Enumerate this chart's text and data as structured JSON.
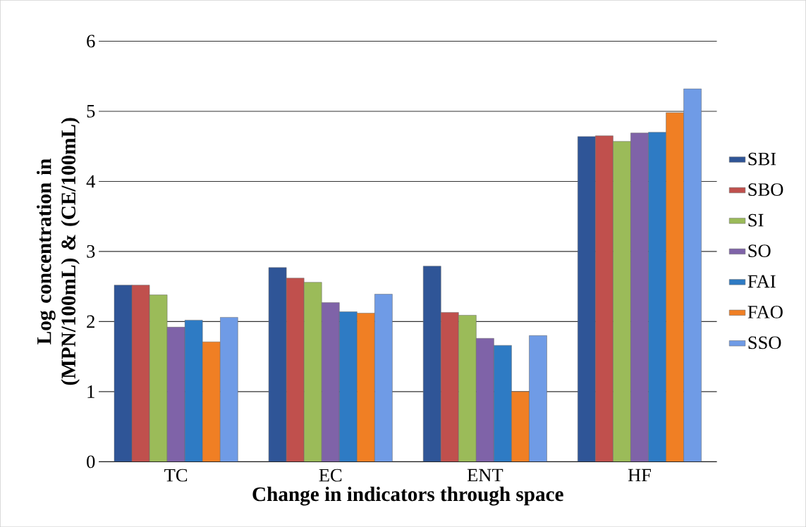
{
  "chart_data": {
    "type": "bar",
    "xlabel": "Change in indicators through space",
    "ylabel": "Log concentration in (MPN/100mL) & (CE/100mL)",
    "categories": [
      "TC",
      "EC",
      "ENT",
      "HF"
    ],
    "series": [
      {
        "name": "SBI",
        "color": "#2f5597",
        "values": [
          2.52,
          2.77,
          2.79,
          4.64
        ]
      },
      {
        "name": "SBO",
        "color": "#c0504d",
        "values": [
          2.52,
          2.62,
          2.13,
          4.65
        ]
      },
      {
        "name": "SI",
        "color": "#9bbb59",
        "values": [
          2.38,
          2.56,
          2.09,
          4.57
        ]
      },
      {
        "name": "SO",
        "color": "#7f63a8",
        "values": [
          1.92,
          2.27,
          1.76,
          4.69
        ]
      },
      {
        "name": "FAI",
        "color": "#2e7bc4",
        "values": [
          2.02,
          2.14,
          1.66,
          4.7
        ]
      },
      {
        "name": "FAO",
        "color": "#f07f24",
        "values": [
          1.71,
          2.12,
          1.0,
          4.98
        ]
      },
      {
        "name": "SSO",
        "color": "#6f9be6",
        "values": [
          2.06,
          2.39,
          1.8,
          5.32
        ]
      }
    ],
    "ylim": [
      0,
      6
    ],
    "yticks": [
      0,
      1,
      2,
      3,
      4,
      5,
      6
    ],
    "grid": "y",
    "legend": "right"
  }
}
